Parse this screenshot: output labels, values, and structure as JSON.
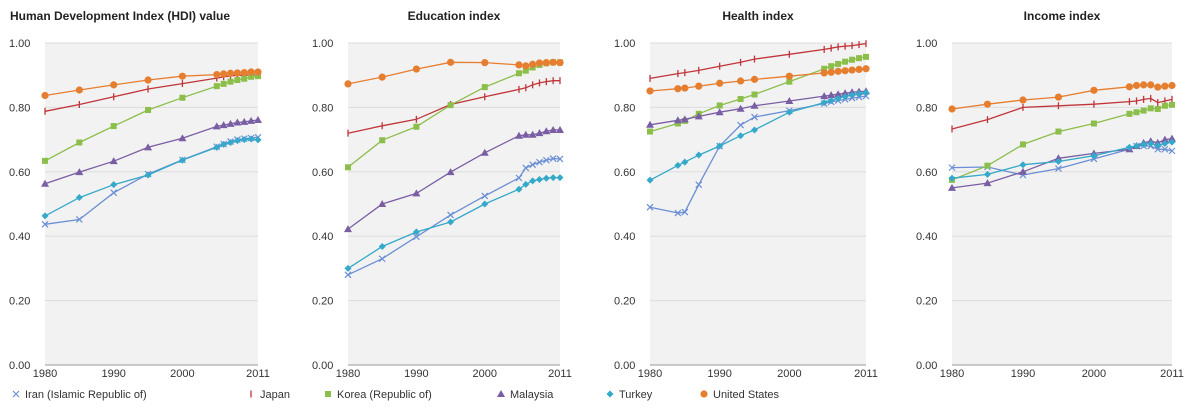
{
  "colors": {
    "plot_bg": "#f2f2f2",
    "grid": "#dcdcdc",
    "axis_text": "#333333",
    "title_text": "#222222"
  },
  "series_meta": [
    {
      "key": "iran",
      "name": "Iran (Islamic Republic of)",
      "color": "#6b8fd4",
      "marker": "x"
    },
    {
      "key": "japan",
      "name": "Japan",
      "color": "#c0353a",
      "marker": "bar"
    },
    {
      "key": "korea",
      "name": "Korea (Republic of)",
      "color": "#8cbe4a",
      "marker": "square"
    },
    {
      "key": "malaysia",
      "name": "Malaysia",
      "color": "#7a5ea4",
      "marker": "triangle"
    },
    {
      "key": "turkey",
      "name": "Turkey",
      "color": "#34a9c9",
      "marker": "diamond"
    },
    {
      "key": "usa",
      "name": "United States",
      "color": "#e67e30",
      "marker": "circle"
    }
  ],
  "chart_data": [
    {
      "type": "line",
      "title": "Human Development Index (HDI) value",
      "ylim": [
        0,
        1
      ],
      "xlim": [
        1980,
        2011
      ],
      "yticks": [
        "0.00",
        "0.20",
        "0.40",
        "0.60",
        "0.80",
        "1.00"
      ],
      "xticks": [
        "1980",
        "1990",
        "2000",
        "2011"
      ],
      "x": [
        1980,
        1985,
        1990,
        1995,
        2000,
        2005,
        2006,
        2007,
        2008,
        2009,
        2010,
        2011
      ],
      "series": [
        {
          "name": "Iran (Islamic Republic of)",
          "values": [
            0.437,
            0.452,
            0.535,
            0.593,
            0.637,
            0.678,
            0.686,
            0.694,
            0.7,
            0.703,
            0.705,
            0.707
          ]
        },
        {
          "name": "Japan",
          "values": [
            0.788,
            0.809,
            0.833,
            0.857,
            0.874,
            0.891,
            0.895,
            0.898,
            0.899,
            0.9,
            0.901,
            0.901
          ]
        },
        {
          "name": "Korea (Republic of)",
          "values": [
            0.634,
            0.691,
            0.742,
            0.792,
            0.83,
            0.866,
            0.873,
            0.88,
            0.885,
            0.889,
            0.895,
            0.897
          ]
        },
        {
          "name": "Malaysia",
          "values": [
            0.563,
            0.599,
            0.633,
            0.676,
            0.704,
            0.741,
            0.745,
            0.749,
            0.753,
            0.755,
            0.758,
            0.761
          ]
        },
        {
          "name": "Turkey",
          "values": [
            0.463,
            0.52,
            0.56,
            0.59,
            0.636,
            0.676,
            0.685,
            0.691,
            0.697,
            0.7,
            0.702,
            0.699
          ]
        },
        {
          "name": "United States",
          "values": [
            0.837,
            0.854,
            0.87,
            0.885,
            0.897,
            0.902,
            0.904,
            0.906,
            0.907,
            0.908,
            0.91,
            0.91
          ]
        }
      ]
    },
    {
      "type": "line",
      "title": "Education index",
      "ylim": [
        0,
        1
      ],
      "xlim": [
        1980,
        2011
      ],
      "yticks": [
        "0.00",
        "0.20",
        "0.40",
        "0.60",
        "0.80",
        "1.00"
      ],
      "xticks": [
        "1980",
        "1990",
        "2000",
        "2011"
      ],
      "x": [
        1980,
        1985,
        1990,
        1995,
        2000,
        2005,
        2006,
        2007,
        2008,
        2009,
        2010,
        2011
      ],
      "series": [
        {
          "name": "Iran (Islamic Republic of)",
          "values": [
            0.28,
            0.33,
            0.398,
            0.466,
            0.525,
            0.581,
            0.612,
            0.622,
            0.63,
            0.636,
            0.641,
            0.64
          ]
        },
        {
          "name": "Japan",
          "values": [
            0.72,
            0.743,
            0.763,
            0.809,
            0.833,
            0.856,
            0.861,
            0.87,
            0.876,
            0.88,
            0.883,
            0.883
          ]
        },
        {
          "name": "Korea (Republic of)",
          "values": [
            0.614,
            0.698,
            0.74,
            0.807,
            0.863,
            0.906,
            0.914,
            0.924,
            0.932,
            0.937,
            0.94,
            0.94
          ]
        },
        {
          "name": "Malaysia",
          "values": [
            0.422,
            0.5,
            0.533,
            0.599,
            0.659,
            0.712,
            0.715,
            0.715,
            0.72,
            0.726,
            0.73,
            0.73
          ]
        },
        {
          "name": "Turkey",
          "values": [
            0.3,
            0.368,
            0.413,
            0.444,
            0.5,
            0.546,
            0.561,
            0.572,
            0.576,
            0.58,
            0.582,
            0.582
          ]
        },
        {
          "name": "United States",
          "values": [
            0.873,
            0.894,
            0.919,
            0.94,
            0.939,
            0.932,
            0.929,
            0.934,
            0.938,
            0.939,
            0.94,
            0.939
          ]
        }
      ]
    },
    {
      "type": "line",
      "title": "Health index",
      "ylim": [
        0,
        1
      ],
      "xlim": [
        1980,
        2011
      ],
      "yticks": [
        "0.00",
        "0.20",
        "0.40",
        "0.60",
        "0.80",
        "1.00"
      ],
      "xticks": [
        "1980",
        "1990",
        "2000",
        "2011"
      ],
      "x": [
        1980,
        1984,
        1985,
        1987,
        1990,
        1993,
        1995,
        2000,
        2005,
        2006,
        2007,
        2008,
        2009,
        2010,
        2011
      ],
      "series": [
        {
          "name": "Iran (Islamic Republic of)",
          "values": [
            0.49,
            0.472,
            0.475,
            0.56,
            0.68,
            0.745,
            0.77,
            0.79,
            0.812,
            0.817,
            0.821,
            0.825,
            0.829,
            0.832,
            0.835
          ]
        },
        {
          "name": "Japan",
          "values": [
            0.89,
            0.905,
            0.908,
            0.915,
            0.928,
            0.94,
            0.95,
            0.965,
            0.98,
            0.984,
            0.988,
            0.99,
            0.992,
            0.995,
            0.998
          ]
        },
        {
          "name": "Korea (Republic of)",
          "values": [
            0.725,
            0.75,
            0.758,
            0.78,
            0.806,
            0.826,
            0.84,
            0.88,
            0.92,
            0.928,
            0.935,
            0.942,
            0.948,
            0.953,
            0.957
          ]
        },
        {
          "name": "Malaysia",
          "values": [
            0.746,
            0.76,
            0.763,
            0.772,
            0.785,
            0.796,
            0.805,
            0.82,
            0.835,
            0.838,
            0.841,
            0.844,
            0.847,
            0.849,
            0.85
          ]
        },
        {
          "name": "Turkey",
          "values": [
            0.574,
            0.62,
            0.63,
            0.652,
            0.68,
            0.712,
            0.73,
            0.785,
            0.815,
            0.821,
            0.828,
            0.834,
            0.839,
            0.843,
            0.846
          ]
        },
        {
          "name": "United States",
          "values": [
            0.851,
            0.858,
            0.86,
            0.866,
            0.875,
            0.882,
            0.887,
            0.897,
            0.907,
            0.909,
            0.912,
            0.914,
            0.916,
            0.918,
            0.92
          ]
        }
      ]
    },
    {
      "type": "line",
      "title": "Income index",
      "ylim": [
        0,
        1
      ],
      "xlim": [
        1980,
        2011
      ],
      "yticks": [
        "0.00",
        "0.20",
        "0.40",
        "0.60",
        "0.80",
        "1.00"
      ],
      "xticks": [
        "1980",
        "1990",
        "2000",
        "2011"
      ],
      "x": [
        1980,
        1985,
        1990,
        1995,
        2000,
        2005,
        2006,
        2007,
        2008,
        2009,
        2010,
        2011
      ],
      "series": [
        {
          "name": "Iran (Islamic Republic of)",
          "values": [
            0.613,
            0.615,
            0.59,
            0.61,
            0.64,
            0.67,
            0.68,
            0.68,
            0.68,
            0.67,
            0.67,
            0.665
          ]
        },
        {
          "name": "Japan",
          "values": [
            0.733,
            0.762,
            0.8,
            0.805,
            0.81,
            0.818,
            0.82,
            0.825,
            0.828,
            0.815,
            0.82,
            0.825
          ]
        },
        {
          "name": "Korea (Republic of)",
          "values": [
            0.575,
            0.619,
            0.685,
            0.725,
            0.75,
            0.78,
            0.785,
            0.79,
            0.797,
            0.795,
            0.805,
            0.808
          ]
        },
        {
          "name": "Malaysia",
          "values": [
            0.55,
            0.565,
            0.6,
            0.642,
            0.657,
            0.67,
            0.68,
            0.69,
            0.695,
            0.69,
            0.7,
            0.703
          ]
        },
        {
          "name": "Turkey",
          "values": [
            0.58,
            0.592,
            0.622,
            0.632,
            0.65,
            0.676,
            0.68,
            0.685,
            0.688,
            0.682,
            0.688,
            0.692
          ]
        },
        {
          "name": "United States",
          "values": [
            0.795,
            0.81,
            0.823,
            0.832,
            0.853,
            0.864,
            0.868,
            0.87,
            0.87,
            0.863,
            0.866,
            0.868
          ]
        }
      ]
    }
  ]
}
